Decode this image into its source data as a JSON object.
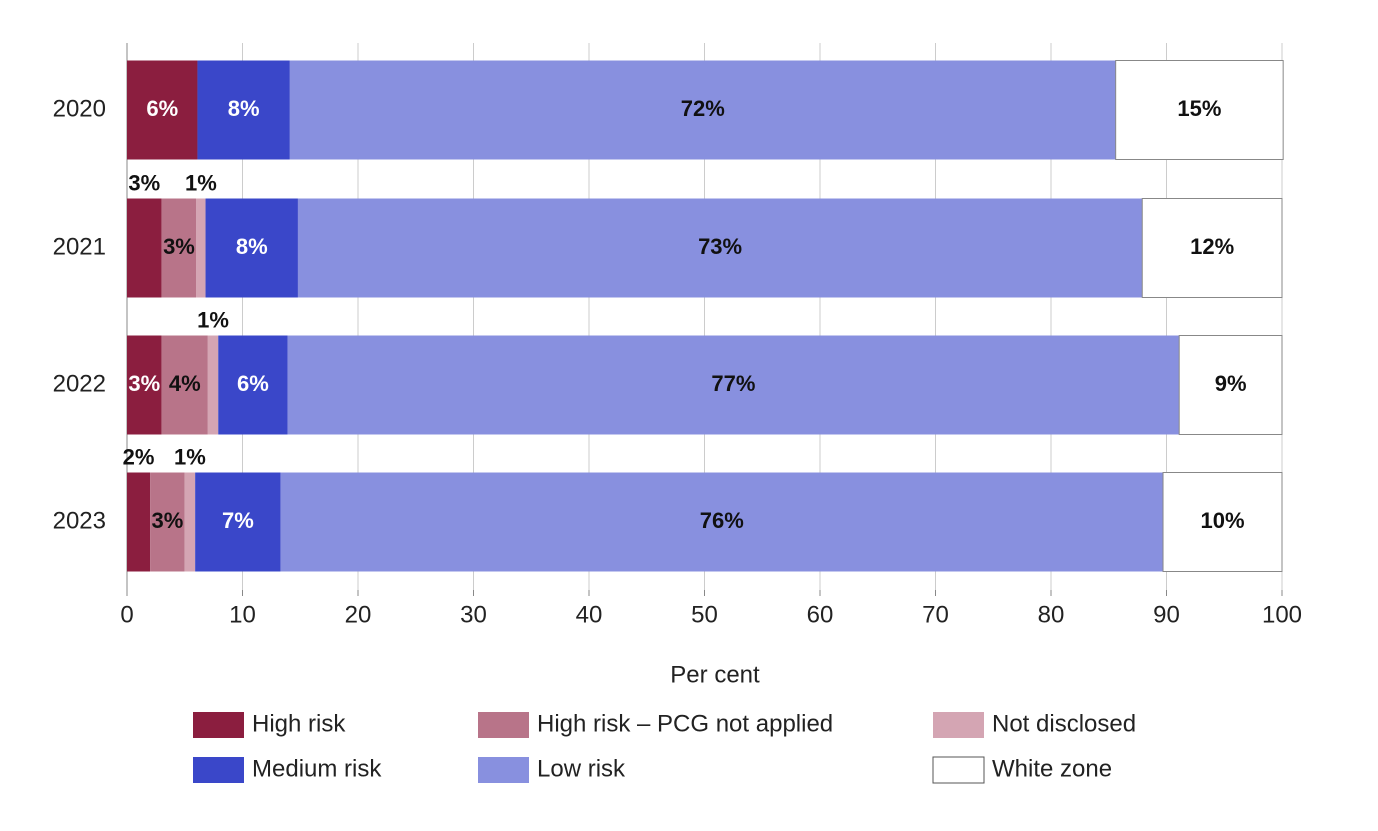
{
  "chart_data": {
    "type": "stacked-bar-horizontal",
    "categories": [
      "2020",
      "2021",
      "2022",
      "2023"
    ],
    "x_label": "Per cent",
    "xlim": [
      0,
      100
    ],
    "xticks": [
      0,
      10,
      20,
      30,
      40,
      50,
      60,
      70,
      80,
      90,
      100
    ],
    "grid": true,
    "series": [
      {
        "name": "High risk",
        "color": "#8b1e3f",
        "values": [
          6.1,
          3.0,
          3.0,
          2.0
        ],
        "value_labels": [
          "6%",
          "3%",
          "3%",
          "2%"
        ]
      },
      {
        "name": "High risk – PCG not applied",
        "color": "#b87489",
        "values": [
          null,
          3.0,
          4.0,
          3.0
        ],
        "value_labels": [
          null,
          "3%",
          "4%",
          "3%"
        ]
      },
      {
        "name": "Not disclosed",
        "color": "#d4a5b3",
        "values": [
          null,
          0.8,
          0.9,
          0.9
        ],
        "value_labels": [
          null,
          "1%",
          "1%",
          "1%"
        ]
      },
      {
        "name": "Medium risk",
        "color": "#3a47c9",
        "values": [
          8.0,
          8.0,
          6.0,
          7.4
        ],
        "value_labels": [
          "8%",
          "8%",
          "6%",
          "7%"
        ]
      },
      {
        "name": "Low risk",
        "color": "#8890df",
        "values": [
          71.5,
          73.1,
          77.2,
          76.4
        ],
        "value_labels": [
          "72%",
          "73%",
          "77%",
          "76%"
        ]
      },
      {
        "name": "White zone",
        "color": "#ffffff",
        "values": [
          14.5,
          12.1,
          8.9,
          10.3
        ],
        "value_labels": [
          "15%",
          "12%",
          "9%",
          "10%"
        ]
      }
    ],
    "legend": "bottom"
  }
}
